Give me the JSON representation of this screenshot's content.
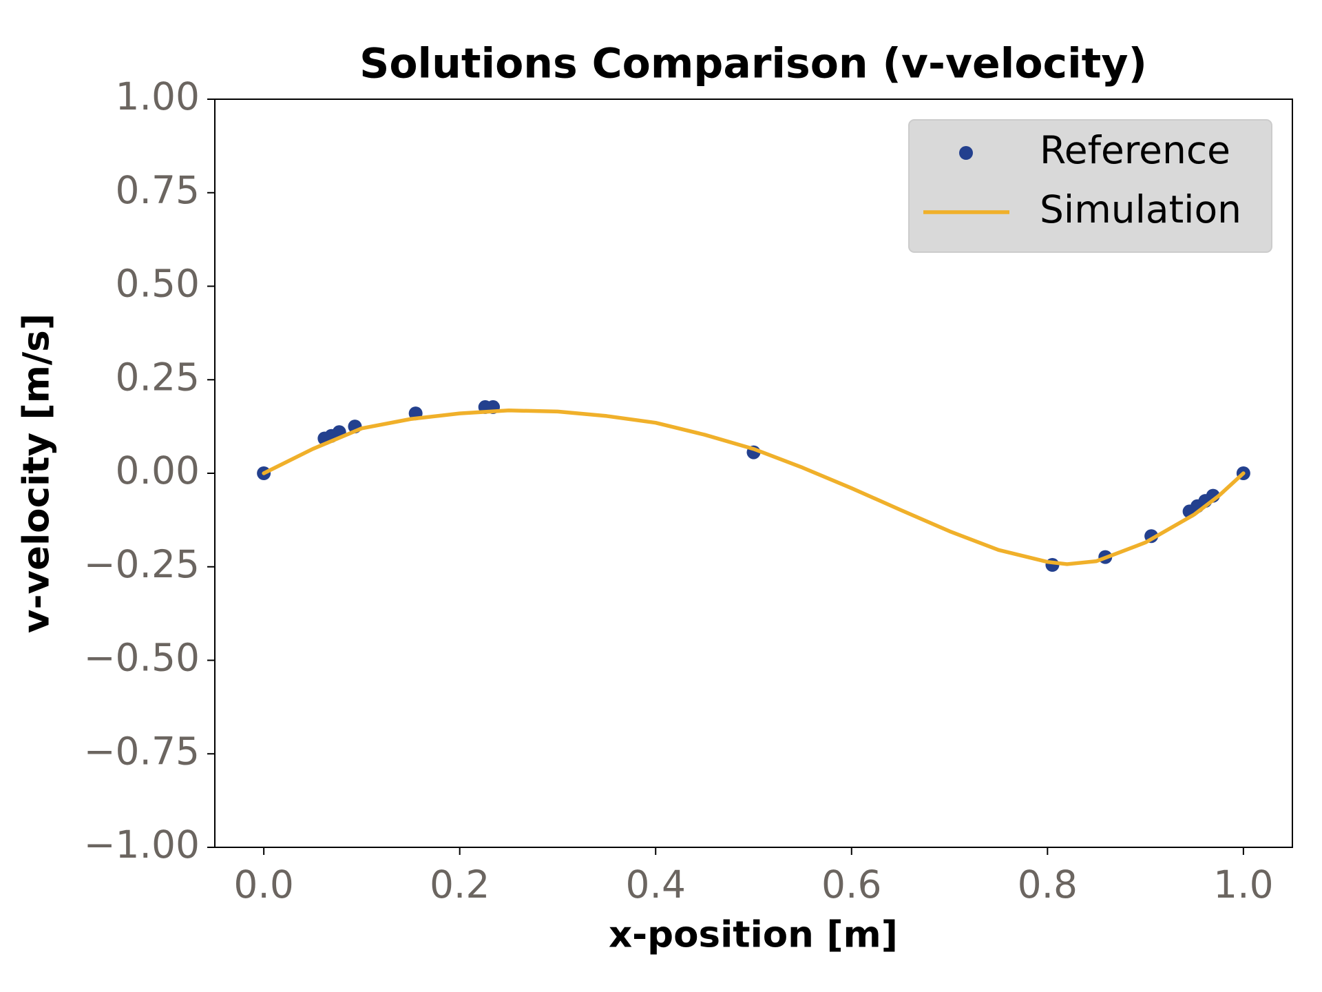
{
  "chart_data": {
    "type": "line",
    "title": "Solutions Comparison (v-velocity)",
    "x_label": "x-position [m]",
    "y_label": "v-velocity [m/s]",
    "xlim": [
      -0.05,
      1.05
    ],
    "ylim": [
      -1,
      1
    ],
    "xticks": [
      {
        "value": 0,
        "label": "0.0"
      },
      {
        "value": 0.2,
        "label": "0.2"
      },
      {
        "value": 0.4,
        "label": "0.4"
      },
      {
        "value": 0.6,
        "label": "0.6"
      },
      {
        "value": 0.8,
        "label": "0.8"
      },
      {
        "value": 1,
        "label": "1.0"
      }
    ],
    "yticks": [
      {
        "value": 1,
        "label": "1.00"
      },
      {
        "value": 0.75,
        "label": "0.75"
      },
      {
        "value": 0.5,
        "label": "0.50"
      },
      {
        "value": 0.25,
        "label": "0.25"
      },
      {
        "value": 0,
        "label": "0.00"
      },
      {
        "value": -0.25,
        "label": "−0.25"
      },
      {
        "value": -0.5,
        "label": "−0.50"
      },
      {
        "value": -0.75,
        "label": "−0.75"
      },
      {
        "value": -1,
        "label": "−1.00"
      }
    ],
    "grid": false,
    "legend": "upper right",
    "series": [
      {
        "name": "Reference",
        "color": "#23408e",
        "style": "markers",
        "x": [
          0,
          0.062,
          0.069,
          0.077,
          0.093,
          0.155,
          0.226,
          0.234,
          0.5,
          0.805,
          0.859,
          0.906,
          0.945,
          0.953,
          0.961,
          0.969,
          1
        ],
        "values": [
          0,
          0.093,
          0.1,
          0.11,
          0.125,
          0.16,
          0.177,
          0.177,
          0.056,
          -0.245,
          -0.224,
          -0.168,
          -0.102,
          -0.088,
          -0.074,
          -0.06,
          0
        ]
      },
      {
        "name": "Simulation",
        "color": "#f0b02a",
        "style": "line",
        "x": [
          0,
          0.05,
          0.1,
          0.15,
          0.2,
          0.25,
          0.3,
          0.35,
          0.4,
          0.45,
          0.5,
          0.55,
          0.6,
          0.65,
          0.7,
          0.75,
          0.8,
          0.82,
          0.85,
          0.9,
          0.95,
          0.975,
          1
        ],
        "values": [
          0,
          0.065,
          0.12,
          0.145,
          0.16,
          0.168,
          0.165,
          0.153,
          0.135,
          0.103,
          0.065,
          0.015,
          -0.04,
          -0.098,
          -0.155,
          -0.205,
          -0.237,
          -0.243,
          -0.235,
          -0.185,
          -0.11,
          -0.06,
          0
        ]
      }
    ]
  }
}
